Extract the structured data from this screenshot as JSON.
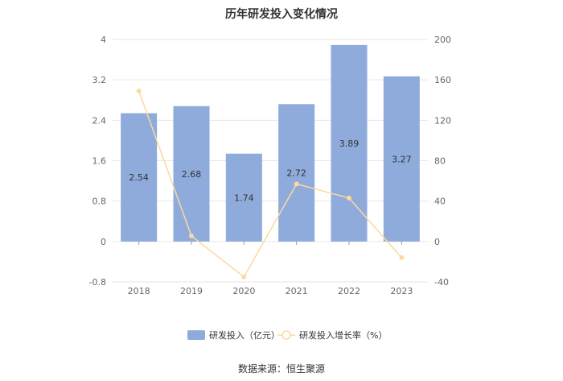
{
  "chart_data": {
    "type": "bar+line",
    "title": "历年研发投入变化情况",
    "categories": [
      "2018",
      "2019",
      "2020",
      "2021",
      "2022",
      "2023"
    ],
    "series": [
      {
        "name": "研发投入（亿元）",
        "type": "bar",
        "axis": "left",
        "color": "#8eabdb",
        "values": [
          2.54,
          2.68,
          1.74,
          2.72,
          3.89,
          3.27
        ],
        "labels": [
          "2.54",
          "2.68",
          "1.74",
          "2.72",
          "3.89",
          "3.27"
        ]
      },
      {
        "name": "研发投入增长率（%）",
        "type": "line",
        "axis": "right",
        "color": "#fcd9a1",
        "values": [
          149,
          5.5,
          -35,
          57,
          43,
          -16
        ]
      }
    ],
    "y_left": {
      "min": -0.8,
      "max": 4,
      "ticks": [
        "4",
        "3.2",
        "2.4",
        "1.6",
        "0.8",
        "0",
        "-0.8"
      ]
    },
    "y_right": {
      "min": -40,
      "max": 200,
      "ticks": [
        "200",
        "160",
        "120",
        "80",
        "40",
        "0",
        "-40"
      ]
    },
    "grid": true,
    "legend_position": "bottom"
  },
  "source_text": "数据来源：恒生聚源"
}
